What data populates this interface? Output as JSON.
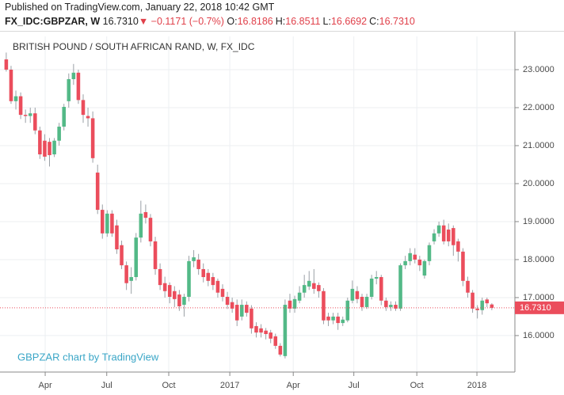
{
  "header": {
    "published": "Published on TradingView.com, January 22, 2018 10:42 GMT",
    "symbol": "FX_IDC:GBPZAR, W",
    "last": "16.7310",
    "arrow": "▼",
    "change": "−0.1171 (−0.7%)",
    "ohlc": [
      {
        "key": "O:",
        "value": "16.8186"
      },
      {
        "key": "H:",
        "value": "16.8511"
      },
      {
        "key": "L:",
        "value": "16.6692"
      },
      {
        "key": "C:",
        "value": "16.7310"
      }
    ]
  },
  "chart_data": {
    "type": "candlestick",
    "title": "BRITISH POUND / SOUTH AFRICAN RAND, W, FX_IDC",
    "watermark": "GBPZAR chart by TradingView",
    "up_color": "#53b987",
    "down_color": "#eb4d5c",
    "grid": true,
    "xlim": [
      -1.3,
      105.8
    ],
    "xticks": [
      {
        "value": 8.1,
        "label": "Apr"
      },
      {
        "value": 20.9,
        "label": "Jul"
      },
      {
        "value": 33.8,
        "label": "Oct"
      },
      {
        "value": 46.5,
        "label": "2017"
      },
      {
        "value": 59.7,
        "label": "Apr"
      },
      {
        "value": 72.3,
        "label": "Jul"
      },
      {
        "value": 85.4,
        "label": "Oct"
      },
      {
        "value": 97.9,
        "label": "2018"
      }
    ],
    "ylim": [
      15.04,
      23.875
    ],
    "yticks": [
      {
        "value": 16,
        "label": "16.0000"
      },
      {
        "value": 17,
        "label": "17.0000"
      },
      {
        "value": 18,
        "label": "18.0000"
      },
      {
        "value": 19,
        "label": "19.0000"
      },
      {
        "value": 20,
        "label": "20.0000"
      },
      {
        "value": 21,
        "label": "21.0000"
      },
      {
        "value": 22,
        "label": "22.0000"
      },
      {
        "value": 23,
        "label": "23.0000"
      }
    ],
    "last_price": {
      "value": 16.731,
      "label": "16.7310"
    },
    "ohlc": [
      [
        23.27,
        23.45,
        22.95,
        23.0
      ],
      [
        23.0,
        23.1,
        22.1,
        22.17
      ],
      [
        22.17,
        22.45,
        21.95,
        22.3
      ],
      [
        22.3,
        22.4,
        21.7,
        21.81
      ],
      [
        21.81,
        21.95,
        21.6,
        21.78
      ],
      [
        21.78,
        22.0,
        21.6,
        21.85
      ],
      [
        21.85,
        22.0,
        21.3,
        21.4
      ],
      [
        21.4,
        21.5,
        20.65,
        20.77
      ],
      [
        21.13,
        21.3,
        20.6,
        20.71
      ],
      [
        21.1,
        21.2,
        20.45,
        20.75
      ],
      [
        20.77,
        21.2,
        20.7,
        21.13
      ],
      [
        21.13,
        21.6,
        21.0,
        21.5
      ],
      [
        21.5,
        22.1,
        21.4,
        22.02
      ],
      [
        22.17,
        22.9,
        22.0,
        22.75
      ],
      [
        22.75,
        23.15,
        22.6,
        22.92
      ],
      [
        22.92,
        23.0,
        22.1,
        22.2
      ],
      [
        22.2,
        22.35,
        21.6,
        21.81
      ],
      [
        21.78,
        22.0,
        21.5,
        21.72
      ],
      [
        21.72,
        21.9,
        20.55,
        20.67
      ],
      [
        20.29,
        20.5,
        19.2,
        19.31
      ],
      [
        19.31,
        19.45,
        18.55,
        18.69
      ],
      [
        18.69,
        19.3,
        18.6,
        19.21
      ],
      [
        19.21,
        19.3,
        18.6,
        18.69
      ],
      [
        18.9,
        19.05,
        18.15,
        18.27
      ],
      [
        18.38,
        18.5,
        17.75,
        17.85
      ],
      [
        17.85,
        17.95,
        17.2,
        17.38
      ],
      [
        17.44,
        17.8,
        17.1,
        17.54
      ],
      [
        17.54,
        18.7,
        17.45,
        18.58
      ],
      [
        18.58,
        19.55,
        18.45,
        19.21
      ],
      [
        19.25,
        19.45,
        18.95,
        19.1
      ],
      [
        19.1,
        19.2,
        18.35,
        18.48
      ],
      [
        18.48,
        18.6,
        17.6,
        17.75
      ],
      [
        17.75,
        17.9,
        17.2,
        17.33
      ],
      [
        17.38,
        17.55,
        17.0,
        17.17
      ],
      [
        17.33,
        17.4,
        16.85,
        17.02
      ],
      [
        17.17,
        17.3,
        16.75,
        16.96
      ],
      [
        17.08,
        17.2,
        16.65,
        16.77
      ],
      [
        16.81,
        17.1,
        16.5,
        17.02
      ],
      [
        17.02,
        18.1,
        16.9,
        17.96
      ],
      [
        17.96,
        18.25,
        17.8,
        18.06
      ],
      [
        18.0,
        18.15,
        17.6,
        17.75
      ],
      [
        17.75,
        17.9,
        17.4,
        17.54
      ],
      [
        17.65,
        17.75,
        17.3,
        17.44
      ],
      [
        17.54,
        17.65,
        17.2,
        17.33
      ],
      [
        17.44,
        17.5,
        17.0,
        17.13
      ],
      [
        17.23,
        17.35,
        16.9,
        17.02
      ],
      [
        17.02,
        17.15,
        16.7,
        16.81
      ],
      [
        16.88,
        17.0,
        16.6,
        16.71
      ],
      [
        16.81,
        16.95,
        16.25,
        16.4
      ],
      [
        16.5,
        16.95,
        16.4,
        16.81
      ],
      [
        16.81,
        16.9,
        16.5,
        16.6
      ],
      [
        16.71,
        16.8,
        16.05,
        16.19
      ],
      [
        16.25,
        16.35,
        15.95,
        16.08
      ],
      [
        16.19,
        16.3,
        15.95,
        16.08
      ],
      [
        16.13,
        16.2,
        15.9,
        16.04
      ],
      [
        16.08,
        16.15,
        15.8,
        15.92
      ],
      [
        15.98,
        16.05,
        15.65,
        15.73
      ],
      [
        15.73,
        15.8,
        15.45,
        15.5
      ],
      [
        15.46,
        16.95,
        15.4,
        16.81
      ],
      [
        16.92,
        17.1,
        16.6,
        16.71
      ],
      [
        16.71,
        17.05,
        16.6,
        16.96
      ],
      [
        16.92,
        17.3,
        16.85,
        17.13
      ],
      [
        17.13,
        17.6,
        17.0,
        17.33
      ],
      [
        17.29,
        17.7,
        17.2,
        17.44
      ],
      [
        17.38,
        17.75,
        17.1,
        17.23
      ],
      [
        17.33,
        17.4,
        17.0,
        17.17
      ],
      [
        17.17,
        17.25,
        16.3,
        16.4
      ],
      [
        16.5,
        16.6,
        16.25,
        16.4
      ],
      [
        16.4,
        16.6,
        16.3,
        16.5
      ],
      [
        16.5,
        16.6,
        16.15,
        16.33
      ],
      [
        16.33,
        16.5,
        16.25,
        16.42
      ],
      [
        16.4,
        17.0,
        16.35,
        16.92
      ],
      [
        16.92,
        17.45,
        16.85,
        17.23
      ],
      [
        17.17,
        17.3,
        16.85,
        16.96
      ],
      [
        17.02,
        17.1,
        16.65,
        16.75
      ],
      [
        16.75,
        17.1,
        16.7,
        17.02
      ],
      [
        17.02,
        17.6,
        16.95,
        17.5
      ],
      [
        17.5,
        17.7,
        17.35,
        17.54
      ],
      [
        17.54,
        17.6,
        16.8,
        16.92
      ],
      [
        16.92,
        17.0,
        16.65,
        16.75
      ],
      [
        16.75,
        16.9,
        16.65,
        16.81
      ],
      [
        16.81,
        16.9,
        16.65,
        16.71
      ],
      [
        16.71,
        17.9,
        16.65,
        17.85
      ],
      [
        17.85,
        18.1,
        17.75,
        17.96
      ],
      [
        17.96,
        18.3,
        17.85,
        18.17
      ],
      [
        18.13,
        18.3,
        17.9,
        18.0
      ],
      [
        18.0,
        18.1,
        17.7,
        17.85
      ],
      [
        17.58,
        18.0,
        17.5,
        17.96
      ],
      [
        17.96,
        18.45,
        17.85,
        18.38
      ],
      [
        18.48,
        18.8,
        18.4,
        18.69
      ],
      [
        18.69,
        19.0,
        18.6,
        18.9
      ],
      [
        18.9,
        19.05,
        18.4,
        18.48
      ],
      [
        18.79,
        18.95,
        18.35,
        18.48
      ],
      [
        18.83,
        18.9,
        18.1,
        18.38
      ],
      [
        18.48,
        18.55,
        17.95,
        18.21
      ],
      [
        18.21,
        18.3,
        17.3,
        17.44
      ],
      [
        17.44,
        17.55,
        17.0,
        17.13
      ],
      [
        17.13,
        17.2,
        16.6,
        16.71
      ],
      [
        16.71,
        16.8,
        16.45,
        16.67
      ],
      [
        16.67,
        17.0,
        16.55,
        16.92
      ],
      [
        16.95,
        17.0,
        16.75,
        16.85
      ],
      [
        16.8186,
        16.8511,
        16.6692,
        16.731
      ]
    ]
  }
}
